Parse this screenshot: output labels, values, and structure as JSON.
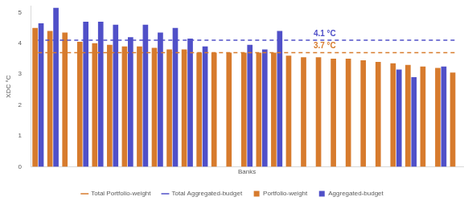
{
  "chart_data": {
    "type": "bar",
    "x_label": "Banks",
    "y_label": "XDC °C",
    "categories": [
      null,
      null,
      null,
      null,
      null,
      null,
      null,
      null,
      null,
      null,
      null,
      null,
      null,
      null,
      null,
      null,
      null,
      null,
      null,
      null,
      null,
      null,
      null,
      null,
      null,
      null,
      null,
      null,
      null
    ],
    "series": [
      {
        "name": "Portfolio-weight",
        "color": "#d77b2d",
        "values": [
          4.5,
          4.4,
          4.35,
          4.05,
          4.0,
          3.95,
          3.9,
          3.9,
          3.85,
          3.8,
          3.8,
          3.7,
          3.7,
          3.7,
          3.7,
          3.7,
          3.7,
          3.6,
          3.55,
          3.55,
          3.5,
          3.5,
          3.45,
          3.4,
          3.35,
          3.3,
          3.25,
          3.2,
          3.05
        ]
      },
      {
        "name": "Aggregated-budget",
        "color": "#5050c8",
        "values": [
          4.65,
          5.15,
          null,
          4.7,
          4.7,
          4.6,
          4.2,
          4.6,
          4.35,
          4.5,
          4.15,
          3.9,
          null,
          null,
          3.95,
          3.8,
          4.4,
          null,
          null,
          null,
          null,
          null,
          null,
          null,
          3.15,
          2.9,
          null,
          3.25,
          null
        ]
      }
    ],
    "reference_lines": [
      {
        "name": "Total Portfolio-weight",
        "value": 3.7,
        "label": "3.7 °C",
        "color": "#d77b2d",
        "line_style": "dashed"
      },
      {
        "name": "Total Aggregated-budget",
        "value": 4.1,
        "label": "4.1 °C",
        "color": "#5050c8",
        "line_style": "dashed"
      }
    ],
    "ylim": [
      0,
      5.2
    ],
    "yticks": [
      0,
      1,
      2,
      3,
      4,
      5
    ],
    "grid": false,
    "legend": "bottom",
    "tick_labels": "y"
  }
}
